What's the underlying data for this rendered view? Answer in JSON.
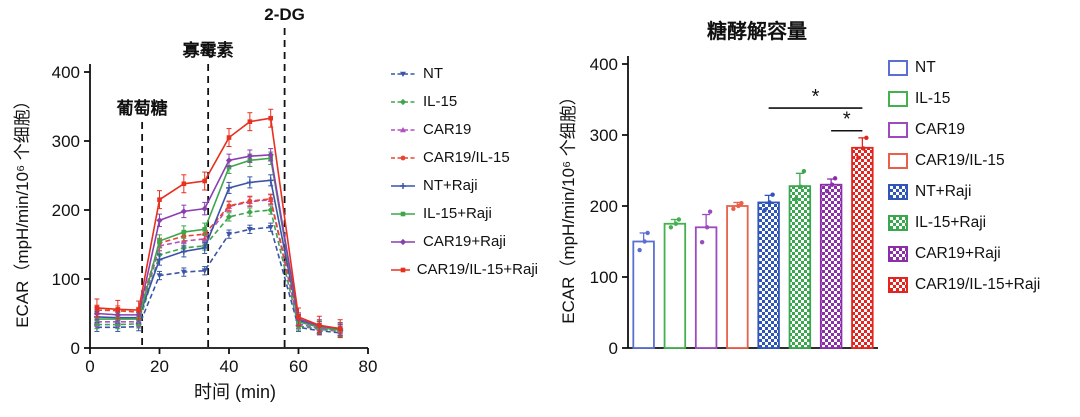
{
  "chart_data": [
    {
      "type": "line",
      "title": "",
      "xlabel": "时间 (min)",
      "ylabel": "ECAR（mpH/min/10⁶ 个细胞）",
      "xlim": [
        0,
        80
      ],
      "ylim": [
        0,
        400
      ],
      "xticks": [
        0,
        20,
        40,
        60,
        80
      ],
      "yticks": [
        0,
        100,
        200,
        300,
        400
      ],
      "injections": [
        {
          "label": "葡萄糖",
          "x": 15
        },
        {
          "label": "寡霉素",
          "x": 34
        },
        {
          "label": "2-DG",
          "x": 56
        }
      ],
      "x": [
        2,
        8,
        14,
        20,
        27,
        33,
        40,
        46,
        52,
        60,
        66,
        72
      ],
      "series": [
        {
          "name": "NT",
          "color": "#3a55a8",
          "dashed": true,
          "marker": "triangle-down",
          "err": 6,
          "values": [
            30,
            30,
            31,
            105,
            110,
            112,
            165,
            172,
            175,
            30,
            25,
            22
          ]
        },
        {
          "name": "IL-15",
          "color": "#3fa54d",
          "dashed": true,
          "marker": "diamond",
          "err": 6,
          "values": [
            34,
            34,
            35,
            135,
            145,
            148,
            190,
            197,
            200,
            32,
            27,
            24
          ]
        },
        {
          "name": "CAR19",
          "color": "#b44fc1",
          "dashed": true,
          "marker": "triangle-up",
          "err": 7,
          "values": [
            38,
            38,
            38,
            148,
            155,
            158,
            205,
            212,
            215,
            35,
            28,
            25
          ]
        },
        {
          "name": "CAR19/IL-15",
          "color": "#e8452f",
          "dashed": true,
          "marker": "circle",
          "err": 7,
          "values": [
            55,
            54,
            52,
            152,
            162,
            165,
            206,
            213,
            216,
            42,
            32,
            28
          ]
        },
        {
          "name": "NT+Raji",
          "color": "#3a55a8",
          "dashed": false,
          "marker": "plus",
          "err": 8,
          "values": [
            45,
            44,
            44,
            128,
            140,
            145,
            232,
            240,
            243,
            40,
            30,
            26
          ]
        },
        {
          "name": "IL-15+Raji",
          "color": "#3fa54d",
          "dashed": false,
          "marker": "square",
          "err": 9,
          "values": [
            42,
            42,
            42,
            155,
            168,
            172,
            262,
            272,
            275,
            38,
            30,
            26
          ]
        },
        {
          "name": "CAR19+Raji",
          "color": "#8a3fb0",
          "dashed": false,
          "marker": "diamond",
          "err": 9,
          "values": [
            50,
            48,
            48,
            185,
            198,
            202,
            272,
            278,
            280,
            42,
            32,
            28
          ]
        },
        {
          "name": "CAR19/IL-15+Raji",
          "color": "#e8301f",
          "dashed": false,
          "marker": "square",
          "err": 13,
          "values": [
            58,
            56,
            55,
            215,
            238,
            242,
            305,
            328,
            333,
            45,
            33,
            28
          ]
        }
      ]
    },
    {
      "type": "bar",
      "title": "糖酵解容量",
      "xlabel": "",
      "ylabel": "ECAR（mpH/min/10⁶ 个细胞）",
      "ylim": [
        0,
        400
      ],
      "yticks": [
        0,
        100,
        200,
        300,
        400
      ],
      "categories": [
        "NT",
        "IL-15",
        "CAR19",
        "CAR19/IL-15",
        "NT+Raji",
        "IL-15+Raji",
        "CAR19+Raji",
        "CAR19/IL-15+Raji"
      ],
      "values": [
        150,
        175,
        170,
        200,
        205,
        228,
        230,
        282
      ],
      "errors": [
        12,
        6,
        18,
        5,
        10,
        18,
        8,
        14
      ],
      "points": [
        [
          138,
          150,
          162
        ],
        [
          170,
          175,
          181
        ],
        [
          149,
          170,
          192
        ],
        [
          196,
          200,
          204
        ],
        [
          194,
          205,
          216
        ],
        [
          210,
          227,
          249
        ],
        [
          221,
          230,
          239
        ],
        [
          268,
          281,
          296
        ]
      ],
      "bar_styles": [
        {
          "color": "#5b6fd0",
          "pattern": "open"
        },
        {
          "color": "#44b04e",
          "pattern": "open"
        },
        {
          "color": "#9a4bbf",
          "pattern": "open"
        },
        {
          "color": "#e8604a",
          "pattern": "open"
        },
        {
          "color": "#2f55b8",
          "pattern": "checker"
        },
        {
          "color": "#3aa64e",
          "pattern": "checker"
        },
        {
          "color": "#8a2fa8",
          "pattern": "checker"
        },
        {
          "color": "#e3251f",
          "pattern": "checker"
        }
      ],
      "significance": [
        {
          "from": 4,
          "to": 7,
          "label": "*",
          "y": 338
        },
        {
          "from": 6,
          "to": 7,
          "label": "*",
          "y": 306
        }
      ],
      "legend_position": "right"
    }
  ]
}
